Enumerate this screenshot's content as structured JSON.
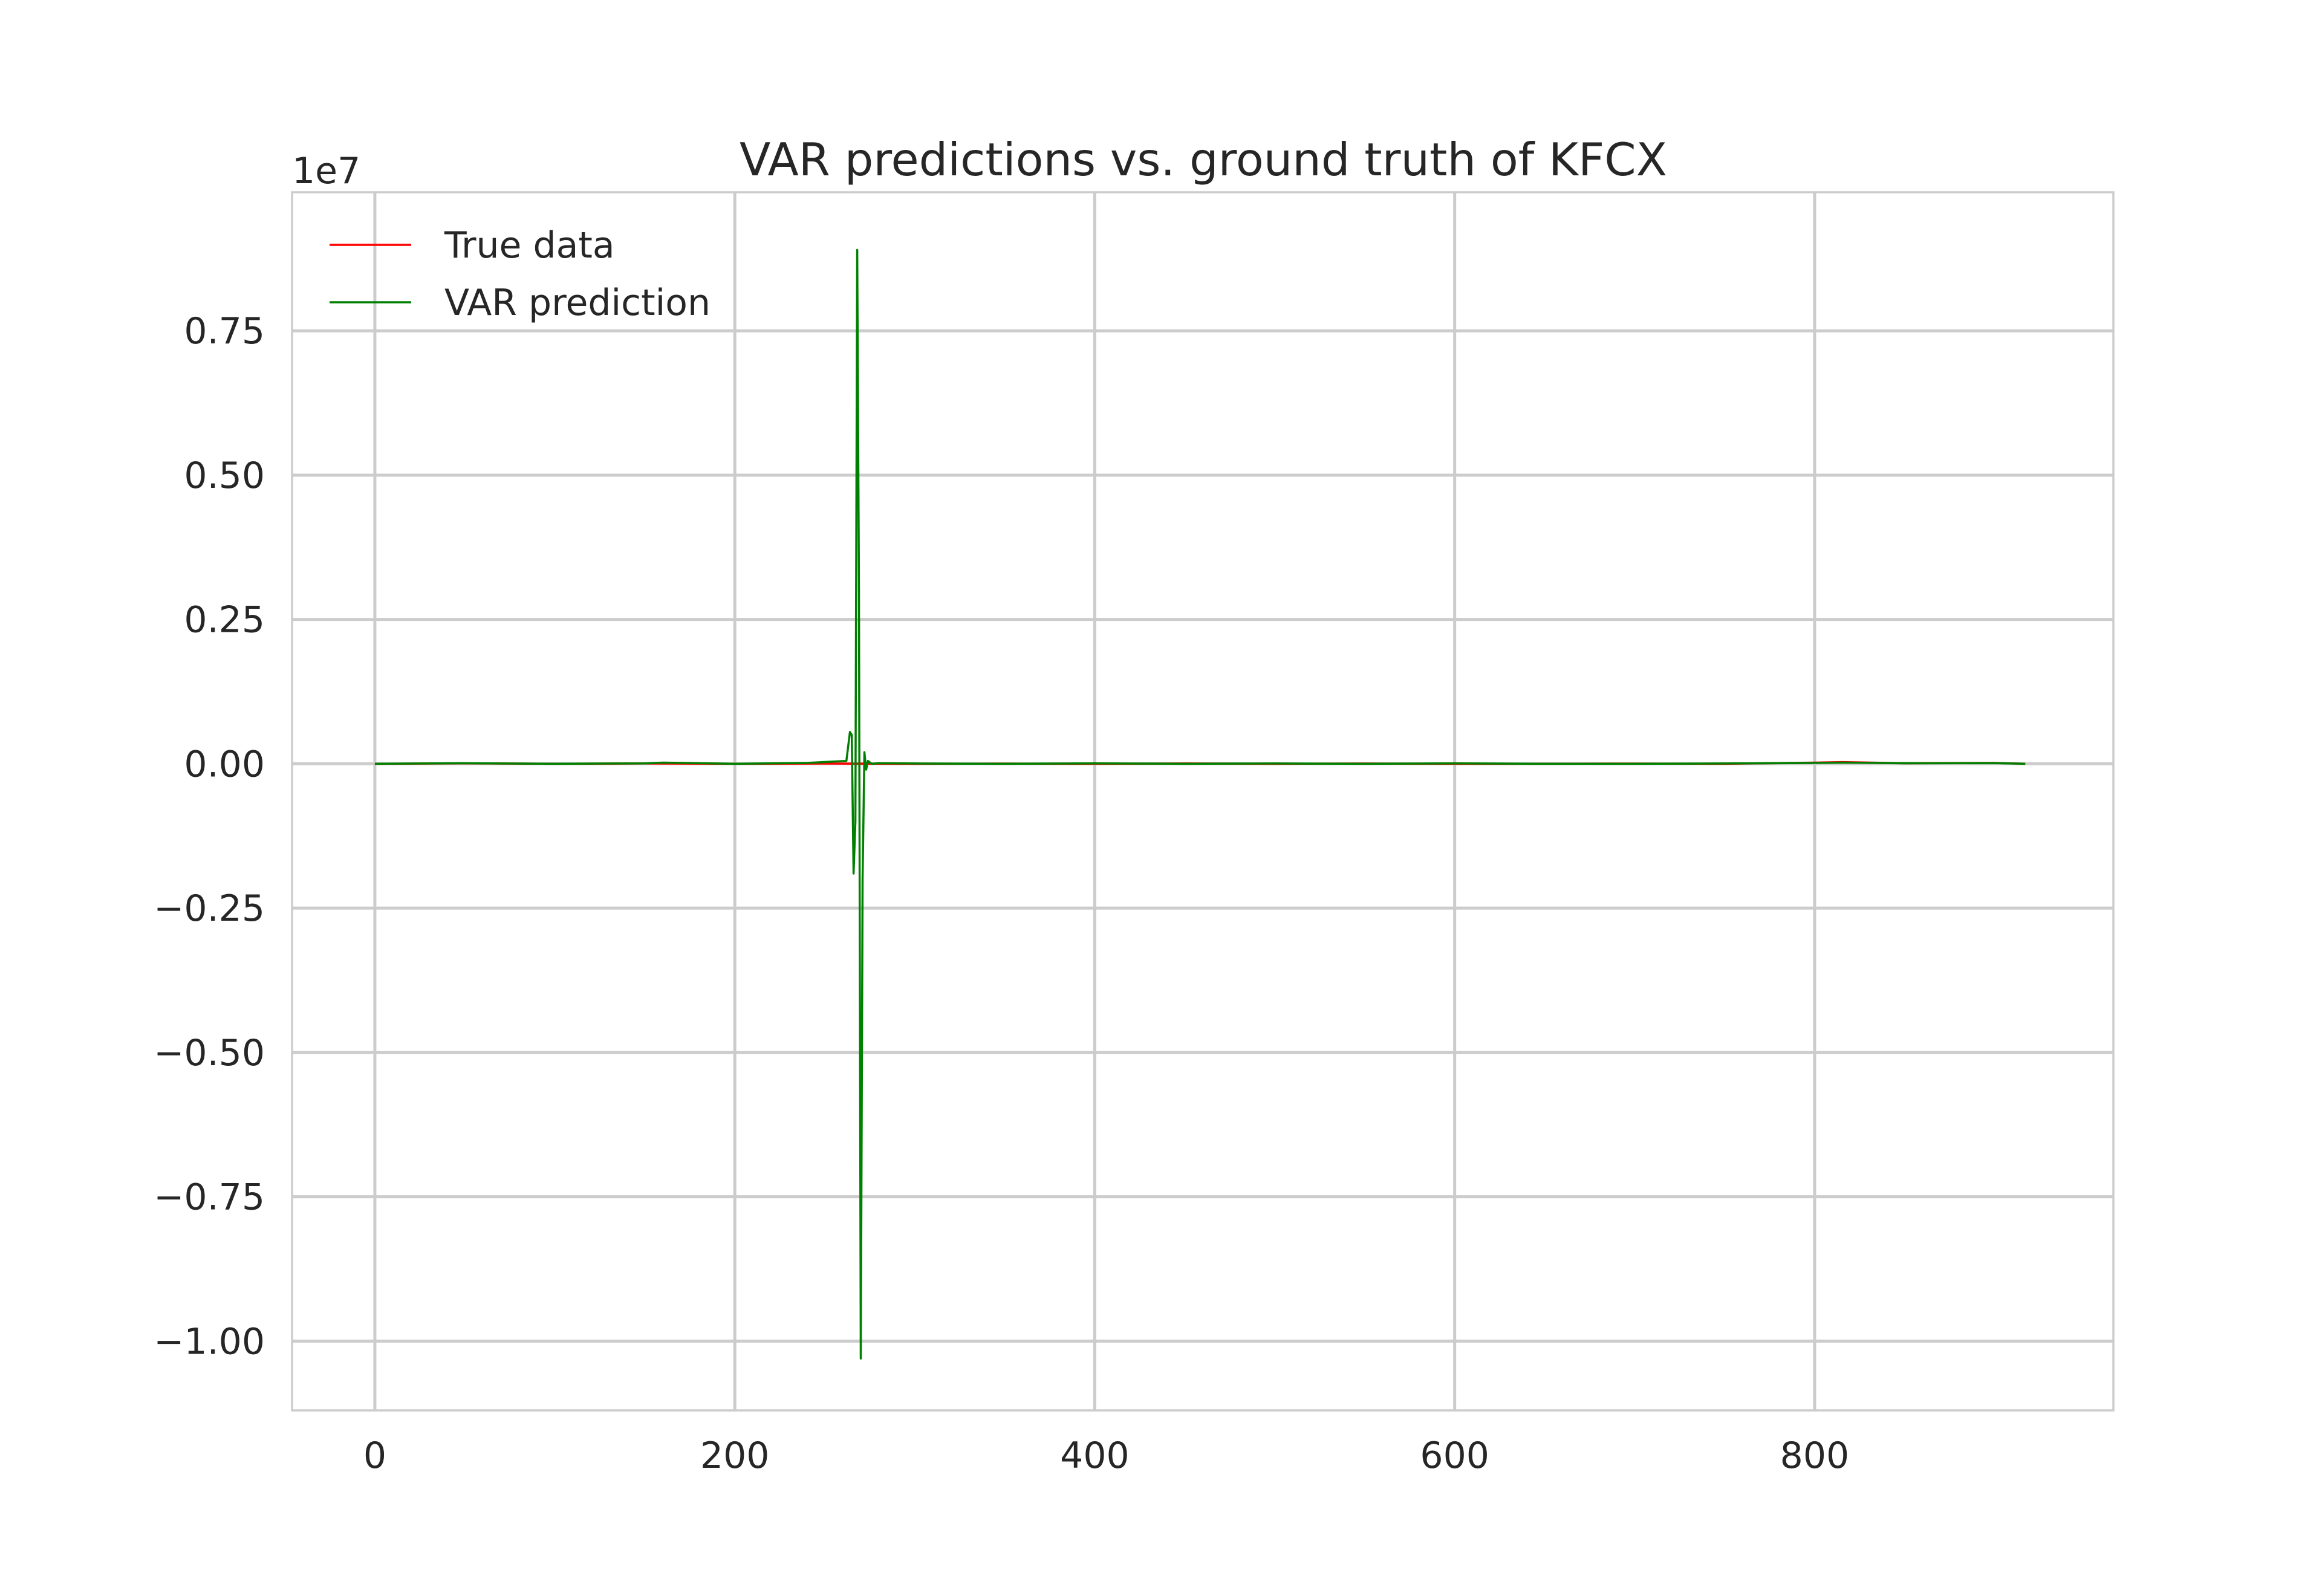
{
  "chart_data": {
    "type": "line",
    "title": "VAR predictions vs. ground truth of KFCX",
    "xlabel": "",
    "ylabel": "",
    "y_offset_label": "1e7",
    "y_scale": 10000000,
    "xlim": [
      -46,
      966
    ],
    "ylim": [
      -1.12,
      0.99
    ],
    "x_ticks": [
      0,
      200,
      400,
      600,
      800
    ],
    "x_tick_labels": [
      "0",
      "200",
      "400",
      "600",
      "800"
    ],
    "y_ticks": [
      0.75,
      0.5,
      0.25,
      0.0,
      -0.25,
      -0.5,
      -0.75,
      -1.0
    ],
    "y_tick_labels": [
      "0.75",
      "0.50",
      "0.25",
      "0.00",
      "−0.25",
      "−0.50",
      "−0.75",
      "−1.00"
    ],
    "grid": true,
    "legend_position": "top-left",
    "series": [
      {
        "name": "True data",
        "color": "#ff0000",
        "x": [
          0,
          50,
          100,
          150,
          200,
          250,
          300,
          350,
          400,
          450,
          500,
          550,
          600,
          650,
          700,
          750,
          800,
          815,
          850,
          900,
          917
        ],
        "values": [
          0.0,
          0.0008,
          0.0,
          0.0005,
          0.0,
          0.0004,
          0.0,
          0.0003,
          0.0,
          0.0005,
          0.0,
          0.0004,
          0.0,
          0.0,
          0.0003,
          0.0,
          0.002,
          0.003,
          0.001,
          0.0015,
          0.0
        ]
      },
      {
        "name": "VAR prediction",
        "color": "#008000",
        "x": [
          0,
          50,
          100,
          150,
          160,
          200,
          240,
          262,
          264,
          265,
          266,
          267,
          268,
          269,
          270,
          271,
          272,
          273,
          274,
          276,
          280,
          300,
          350,
          400,
          450,
          500,
          550,
          600,
          650,
          700,
          750,
          800,
          815,
          850,
          900,
          917
        ],
        "values": [
          0.0,
          0.001,
          0.0,
          0.0008,
          0.002,
          0.0,
          0.0015,
          0.005,
          0.055,
          0.05,
          -0.19,
          -0.1,
          0.89,
          0.3,
          -1.03,
          -0.2,
          0.02,
          -0.01,
          0.005,
          0.0,
          0.001,
          0.0005,
          0.0,
          0.0008,
          0.0,
          0.0005,
          0.0,
          0.0008,
          0.0,
          0.0,
          0.0005,
          0.0015,
          0.002,
          0.001,
          0.0012,
          0.0
        ]
      }
    ]
  }
}
